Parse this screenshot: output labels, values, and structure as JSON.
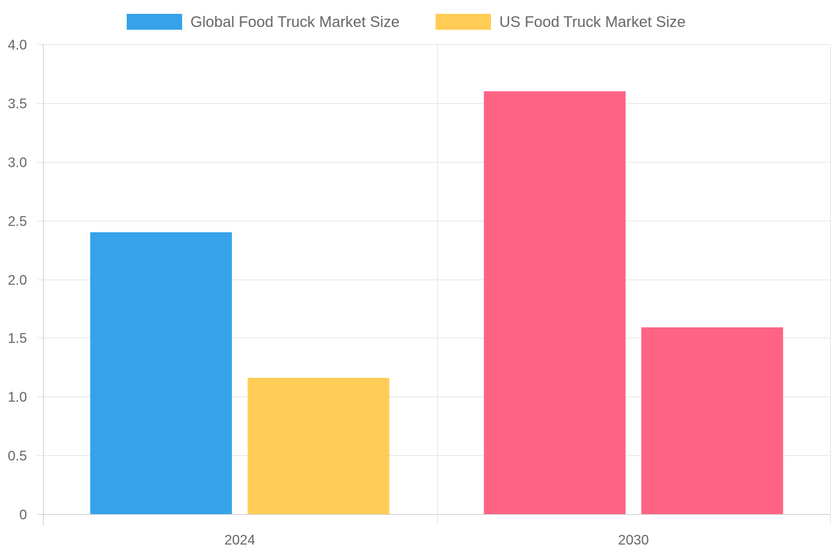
{
  "chart_data": {
    "type": "bar",
    "title": "",
    "xlabel": "",
    "ylabel": "",
    "categories": [
      "2024",
      "2030"
    ],
    "series": [
      {
        "name": "Global Food Truck Market Size",
        "values": [
          2.4,
          3.6
        ],
        "color": "#36A2EB",
        "bar_colors": [
          "#36A2EB",
          "#FF6384"
        ]
      },
      {
        "name": "US Food Truck Market Size",
        "values": [
          1.16,
          1.59
        ],
        "color": "#FFCD56",
        "bar_colors": [
          "#FFCD56",
          "#FF6384"
        ]
      }
    ],
    "ylim": [
      0,
      4
    ],
    "yticks": [
      "0",
      "0.5",
      "1.0",
      "1.5",
      "2.0",
      "2.5",
      "3.0",
      "3.5",
      "4.0"
    ],
    "grid": true,
    "legend_position": "top-center"
  }
}
